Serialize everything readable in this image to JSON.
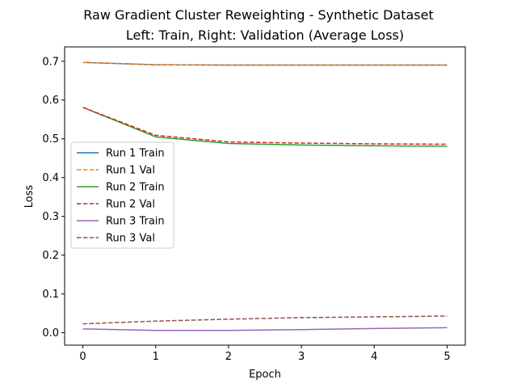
{
  "chart_data": {
    "type": "line",
    "title": "Raw Gradient Cluster Reweighting - Synthetic Dataset",
    "subtitle": "Left: Train, Right: Validation (Average Loss)",
    "xlabel": "Epoch",
    "ylabel": "Loss",
    "x": [
      0,
      1,
      2,
      3,
      4,
      5
    ],
    "xlim": [
      -0.25,
      5.25
    ],
    "ylim": [
      -0.032,
      0.737
    ],
    "xticks": [
      0,
      1,
      2,
      3,
      4,
      5
    ],
    "yticks": [
      0.0,
      0.1,
      0.2,
      0.3,
      0.4,
      0.5,
      0.6,
      0.7
    ],
    "grid": false,
    "legend_position": "center-left",
    "series": [
      {
        "name": "Run 1 Train",
        "color": "#1f77b4",
        "dash": "solid",
        "values": [
          0.697,
          0.691,
          0.69,
          0.69,
          0.69,
          0.69
        ]
      },
      {
        "name": "Run 1 Val",
        "color": "#ff7f0e",
        "dash": "dashed",
        "values": [
          0.697,
          0.691,
          0.69,
          0.69,
          0.69,
          0.69
        ]
      },
      {
        "name": "Run 2 Train",
        "color": "#2ca02c",
        "dash": "solid",
        "values": [
          0.581,
          0.505,
          0.488,
          0.484,
          0.482,
          0.481
        ]
      },
      {
        "name": "Run 2 Val",
        "color": "#d62728",
        "dash": "dashed",
        "values": [
          0.581,
          0.509,
          0.492,
          0.489,
          0.487,
          0.486
        ]
      },
      {
        "name": "Run 3 Train",
        "color": "#9467bd",
        "dash": "solid",
        "values": [
          0.01,
          0.006,
          0.006,
          0.008,
          0.011,
          0.013
        ]
      },
      {
        "name": "Run 3 Val",
        "color": "#8c564b",
        "dash": "dashed",
        "values": [
          0.023,
          0.03,
          0.035,
          0.039,
          0.041,
          0.043
        ]
      }
    ]
  }
}
